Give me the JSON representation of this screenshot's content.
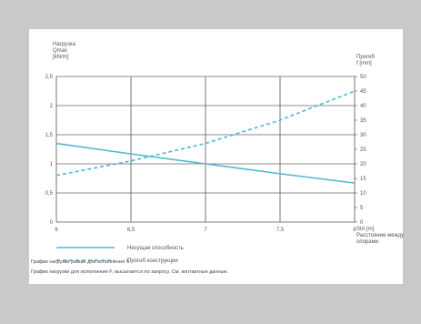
{
  "chart_data": {
    "type": "line",
    "left_axis_label": [
      "Нагрузка",
      "Qmax",
      "[kN/m]"
    ],
    "right_axis_label": [
      "Прогиб",
      "f [mm]"
    ],
    "x_label": [
      "StA [m]",
      "Расстояние между",
      "опорами"
    ],
    "x_ticks": [
      "6",
      "6,5",
      "7",
      "7,5",
      "8"
    ],
    "y_left_ticks": [
      "0",
      "0,5",
      "1",
      "1,5",
      "2",
      "2,5"
    ],
    "y_right_ticks": [
      "0",
      "5",
      "10",
      "15",
      "20",
      "25",
      "30",
      "35",
      "40",
      "45",
      "50"
    ],
    "xlim": [
      6,
      8
    ],
    "ylim_left": [
      0,
      2.5
    ],
    "ylim_right": [
      0,
      50
    ],
    "series": [
      {
        "name": "Несущая способность",
        "axis": "left",
        "style": "solid",
        "color": "#4db8d4",
        "points": [
          [
            6,
            1.35
          ],
          [
            6.5,
            1.17
          ],
          [
            7,
            1.0
          ],
          [
            7.5,
            0.83
          ],
          [
            8,
            0.67
          ]
        ]
      },
      {
        "name": "Прогиб конструкции",
        "axis": "right",
        "style": "dashed",
        "color": "#4db8d4",
        "points": [
          [
            6,
            16
          ],
          [
            6.5,
            21
          ],
          [
            7,
            27
          ],
          [
            7.5,
            35
          ],
          [
            8,
            45
          ]
        ]
      }
    ],
    "grid": true,
    "legend_position": "bottom-left"
  },
  "notes": {
    "line1": "График нагрузки указан для исполнения S",
    "line2": "График нагрузки для исполнения F, высылается по запросу. См. контактные данные."
  }
}
